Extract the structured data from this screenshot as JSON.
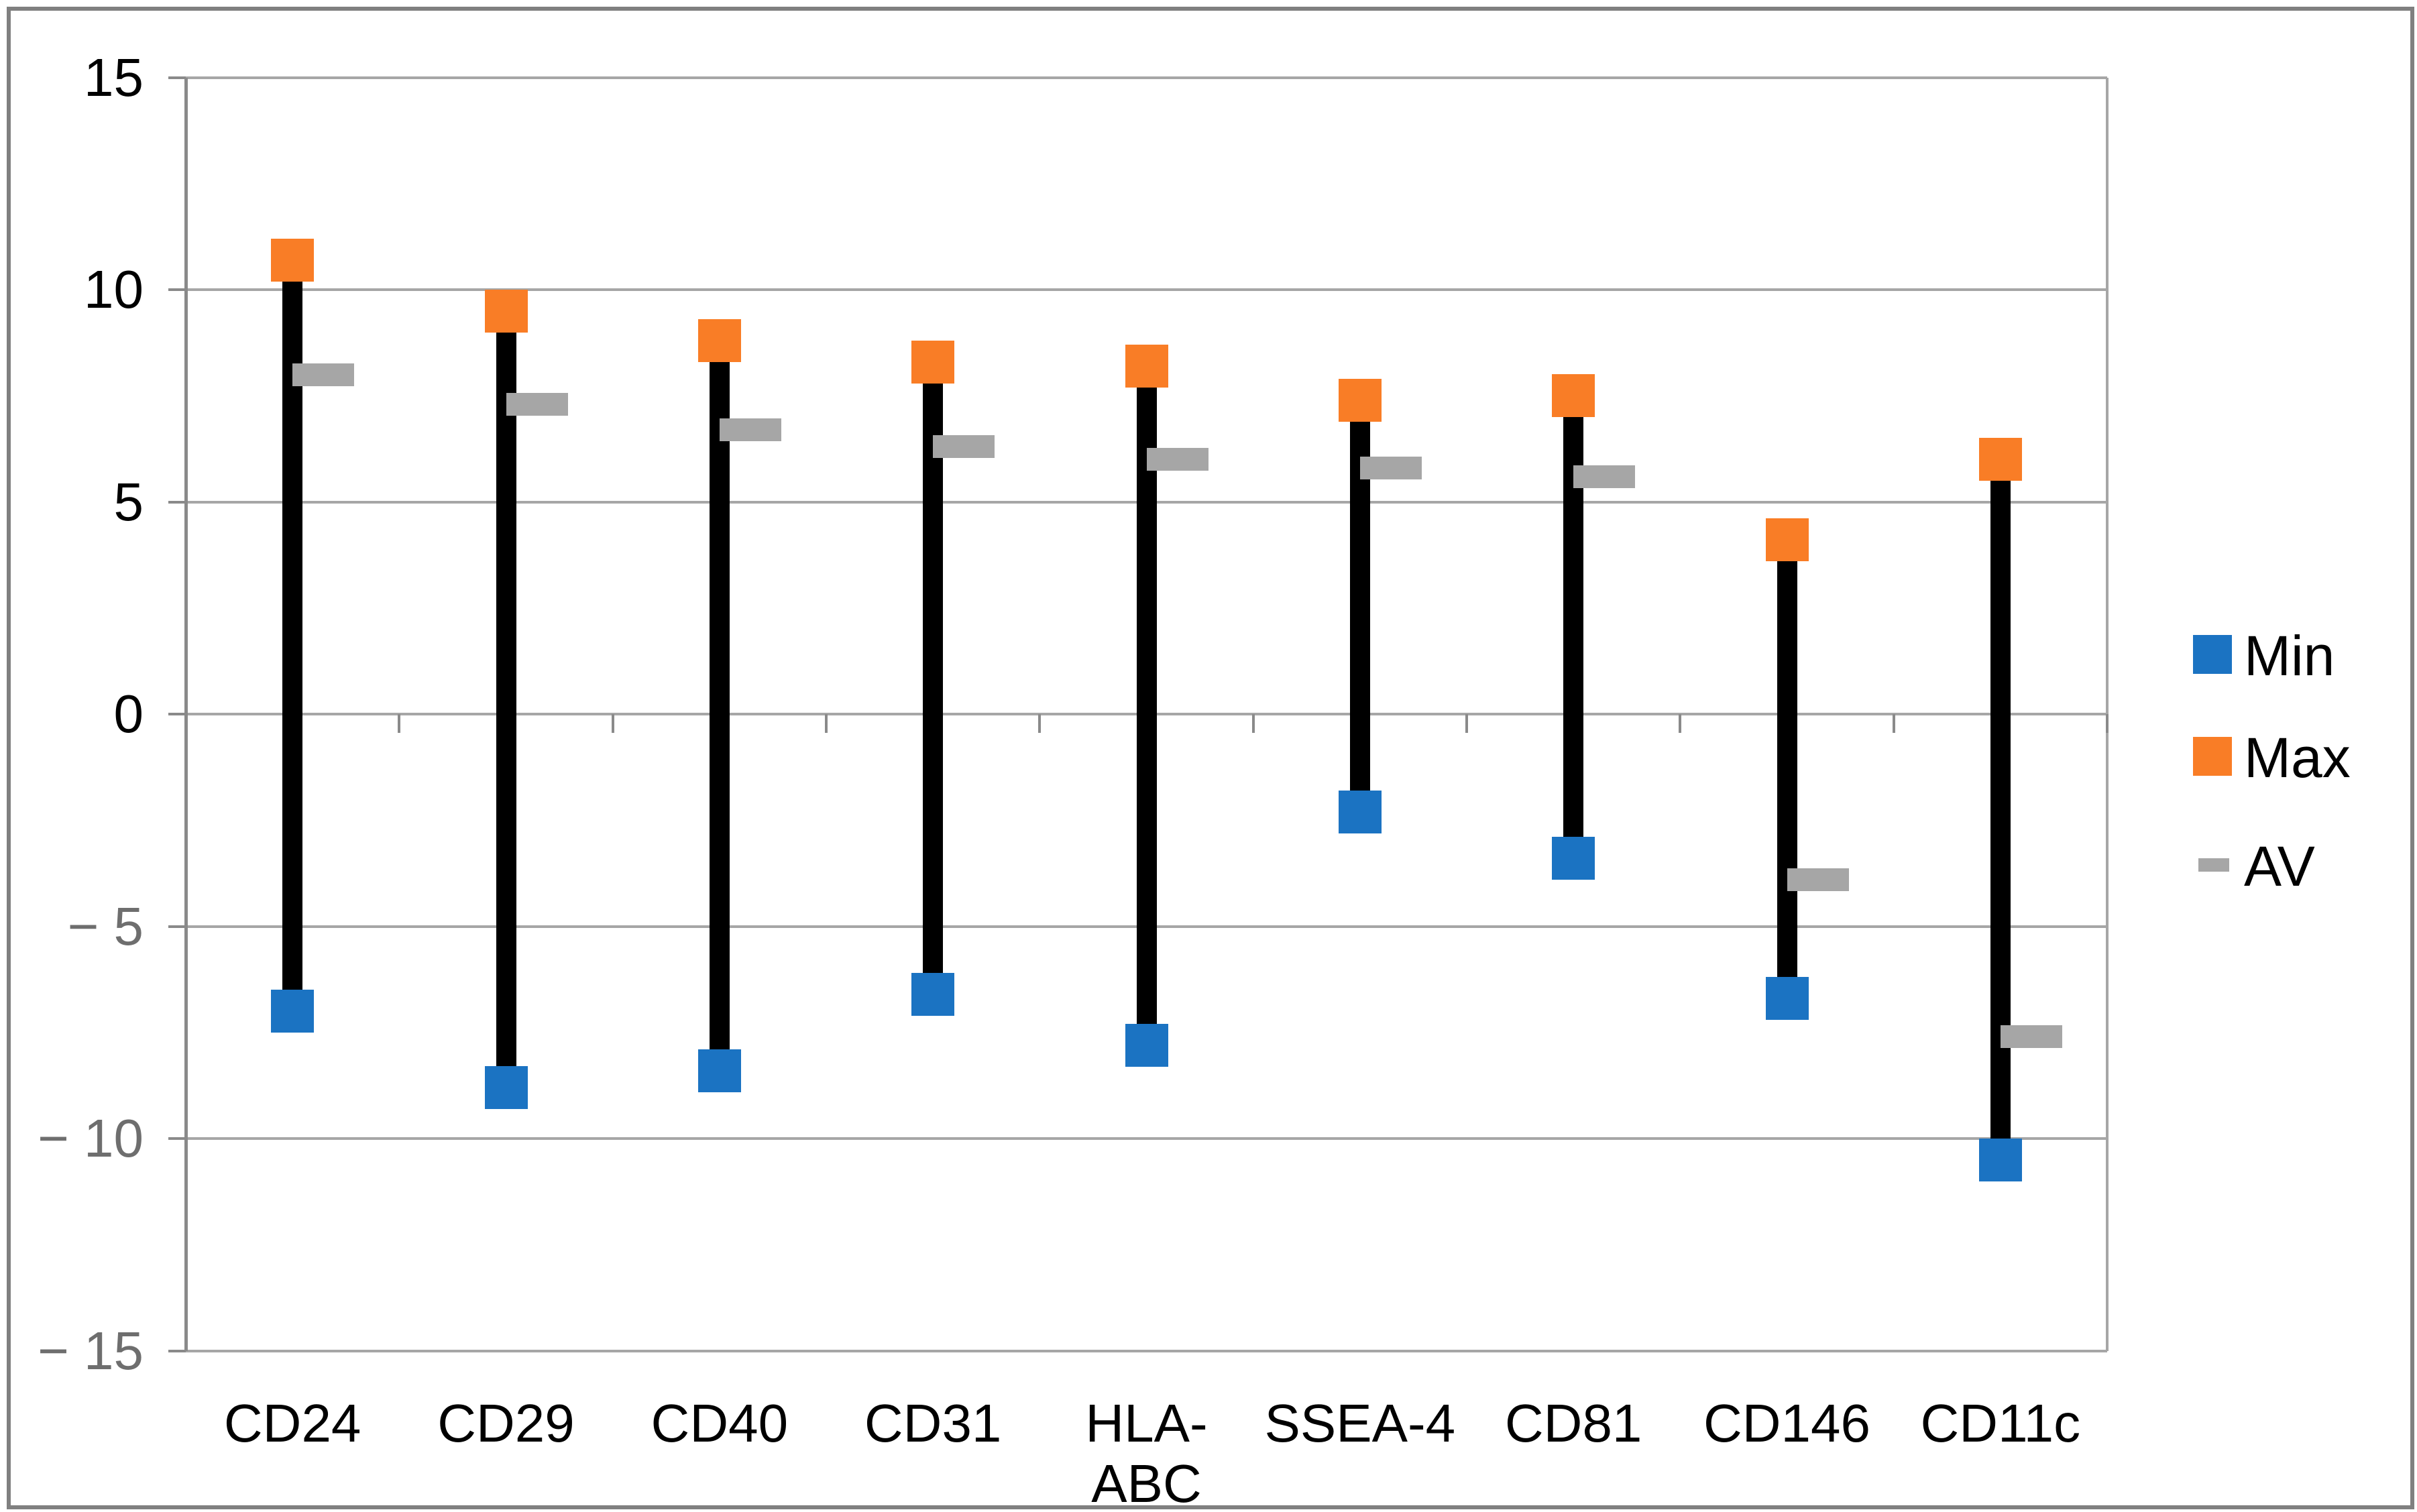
{
  "chart_data": {
    "type": "line",
    "subtype": "high-low-average-markers",
    "title": "",
    "categories": [
      "CD24",
      "CD29",
      "CD40",
      "CD31",
      "HLA-ABC",
      "SSEA-4",
      "CD81",
      "CD146",
      "CD11c"
    ],
    "series": [
      {
        "name": "Min",
        "marker": "square",
        "color": "#1B73C2",
        "values": [
          -7.0,
          -8.8,
          -8.4,
          -6.6,
          -7.8,
          -2.3,
          -3.4,
          -6.7,
          -10.5
        ]
      },
      {
        "name": "Max",
        "marker": "square",
        "color": "#F97D26",
        "values": [
          10.7,
          9.5,
          8.8,
          8.3,
          8.2,
          7.4,
          7.5,
          4.1,
          6.0
        ]
      },
      {
        "name": "AV",
        "marker": "dash",
        "color": "#A6A6A6",
        "values": [
          8.0,
          7.3,
          6.7,
          6.3,
          6.0,
          5.8,
          5.6,
          -3.9,
          -7.6
        ]
      }
    ],
    "high_low_line_color": "#000000",
    "y_axis": {
      "min": -15,
      "max": 15,
      "step": 5,
      "tick_labels": [
        "15",
        "10",
        "5",
        "0",
        "− 5",
        "− 10",
        "− 15"
      ],
      "tick_values": [
        15,
        10,
        5,
        0,
        -5,
        -10,
        -15
      ],
      "positive_label_color": "#000000",
      "negative_label_color": "#6E6E6E"
    },
    "grid": true,
    "gridline_color": "#A6A6A6",
    "axis_line_color": "#8A8A8A",
    "figure_border_color": "#808080",
    "legend": {
      "position": "right",
      "items": [
        {
          "label": "Min",
          "series": "Min"
        },
        {
          "label": "Max",
          "series": "Max"
        },
        {
          "label": "AV",
          "series": "AV"
        }
      ]
    }
  }
}
